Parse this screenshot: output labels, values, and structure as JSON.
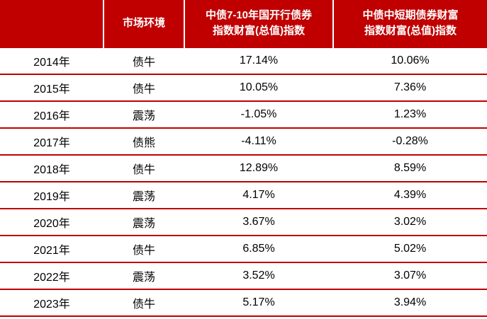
{
  "chart_data": {
    "type": "table",
    "columns": [
      "",
      "市场环境",
      "中债7-10年国开行债券\n指数财富(总值)指数",
      "中债中短期债券财富\n指数财富(总值)指数"
    ],
    "categories": [
      "2014年",
      "2015年",
      "2016年",
      "2017年",
      "2018年",
      "2019年",
      "2020年",
      "2021年",
      "2022年",
      "2023年"
    ],
    "market_environment": [
      "债牛",
      "债牛",
      "震荡",
      "债熊",
      "债牛",
      "震荡",
      "震荡",
      "债牛",
      "震荡",
      "债牛"
    ],
    "series": [
      {
        "name": "中债7-10年国开行债券指数财富(总值)指数",
        "values": [
          17.14,
          10.05,
          -1.05,
          -4.11,
          12.89,
          4.17,
          3.67,
          6.85,
          3.52,
          5.17
        ]
      },
      {
        "name": "中债中短期债券财富指数财富(总值)指数",
        "values": [
          10.06,
          7.36,
          1.23,
          -0.28,
          8.59,
          4.39,
          3.02,
          5.02,
          3.07,
          3.94
        ]
      }
    ],
    "rows": [
      {
        "year": "2014年",
        "env": "债牛",
        "v1": "17.14%",
        "v2": "10.06%"
      },
      {
        "year": "2015年",
        "env": "债牛",
        "v1": "10.05%",
        "v2": "7.36%"
      },
      {
        "year": "2016年",
        "env": "震荡",
        "v1": "-1.05%",
        "v2": "1.23%"
      },
      {
        "year": "2017年",
        "env": "债熊",
        "v1": "-4.11%",
        "v2": "-0.28%"
      },
      {
        "year": "2018年",
        "env": "债牛",
        "v1": "12.89%",
        "v2": "8.59%"
      },
      {
        "year": "2019年",
        "env": "震荡",
        "v1": "4.17%",
        "v2": "4.39%"
      },
      {
        "year": "2020年",
        "env": "震荡",
        "v1": "3.67%",
        "v2": "3.02%"
      },
      {
        "year": "2021年",
        "env": "债牛",
        "v1": "6.85%",
        "v2": "5.02%"
      },
      {
        "year": "2022年",
        "env": "震荡",
        "v1": "3.52%",
        "v2": "3.07%"
      },
      {
        "year": "2023年",
        "env": "债牛",
        "v1": "5.17%",
        "v2": "3.94%"
      }
    ]
  },
  "colors": {
    "header_bg": "#C00000",
    "header_text": "#FFFFFF",
    "row_border": "#C00000",
    "body_bg": "#FFFFFF",
    "body_text": "#000000"
  }
}
